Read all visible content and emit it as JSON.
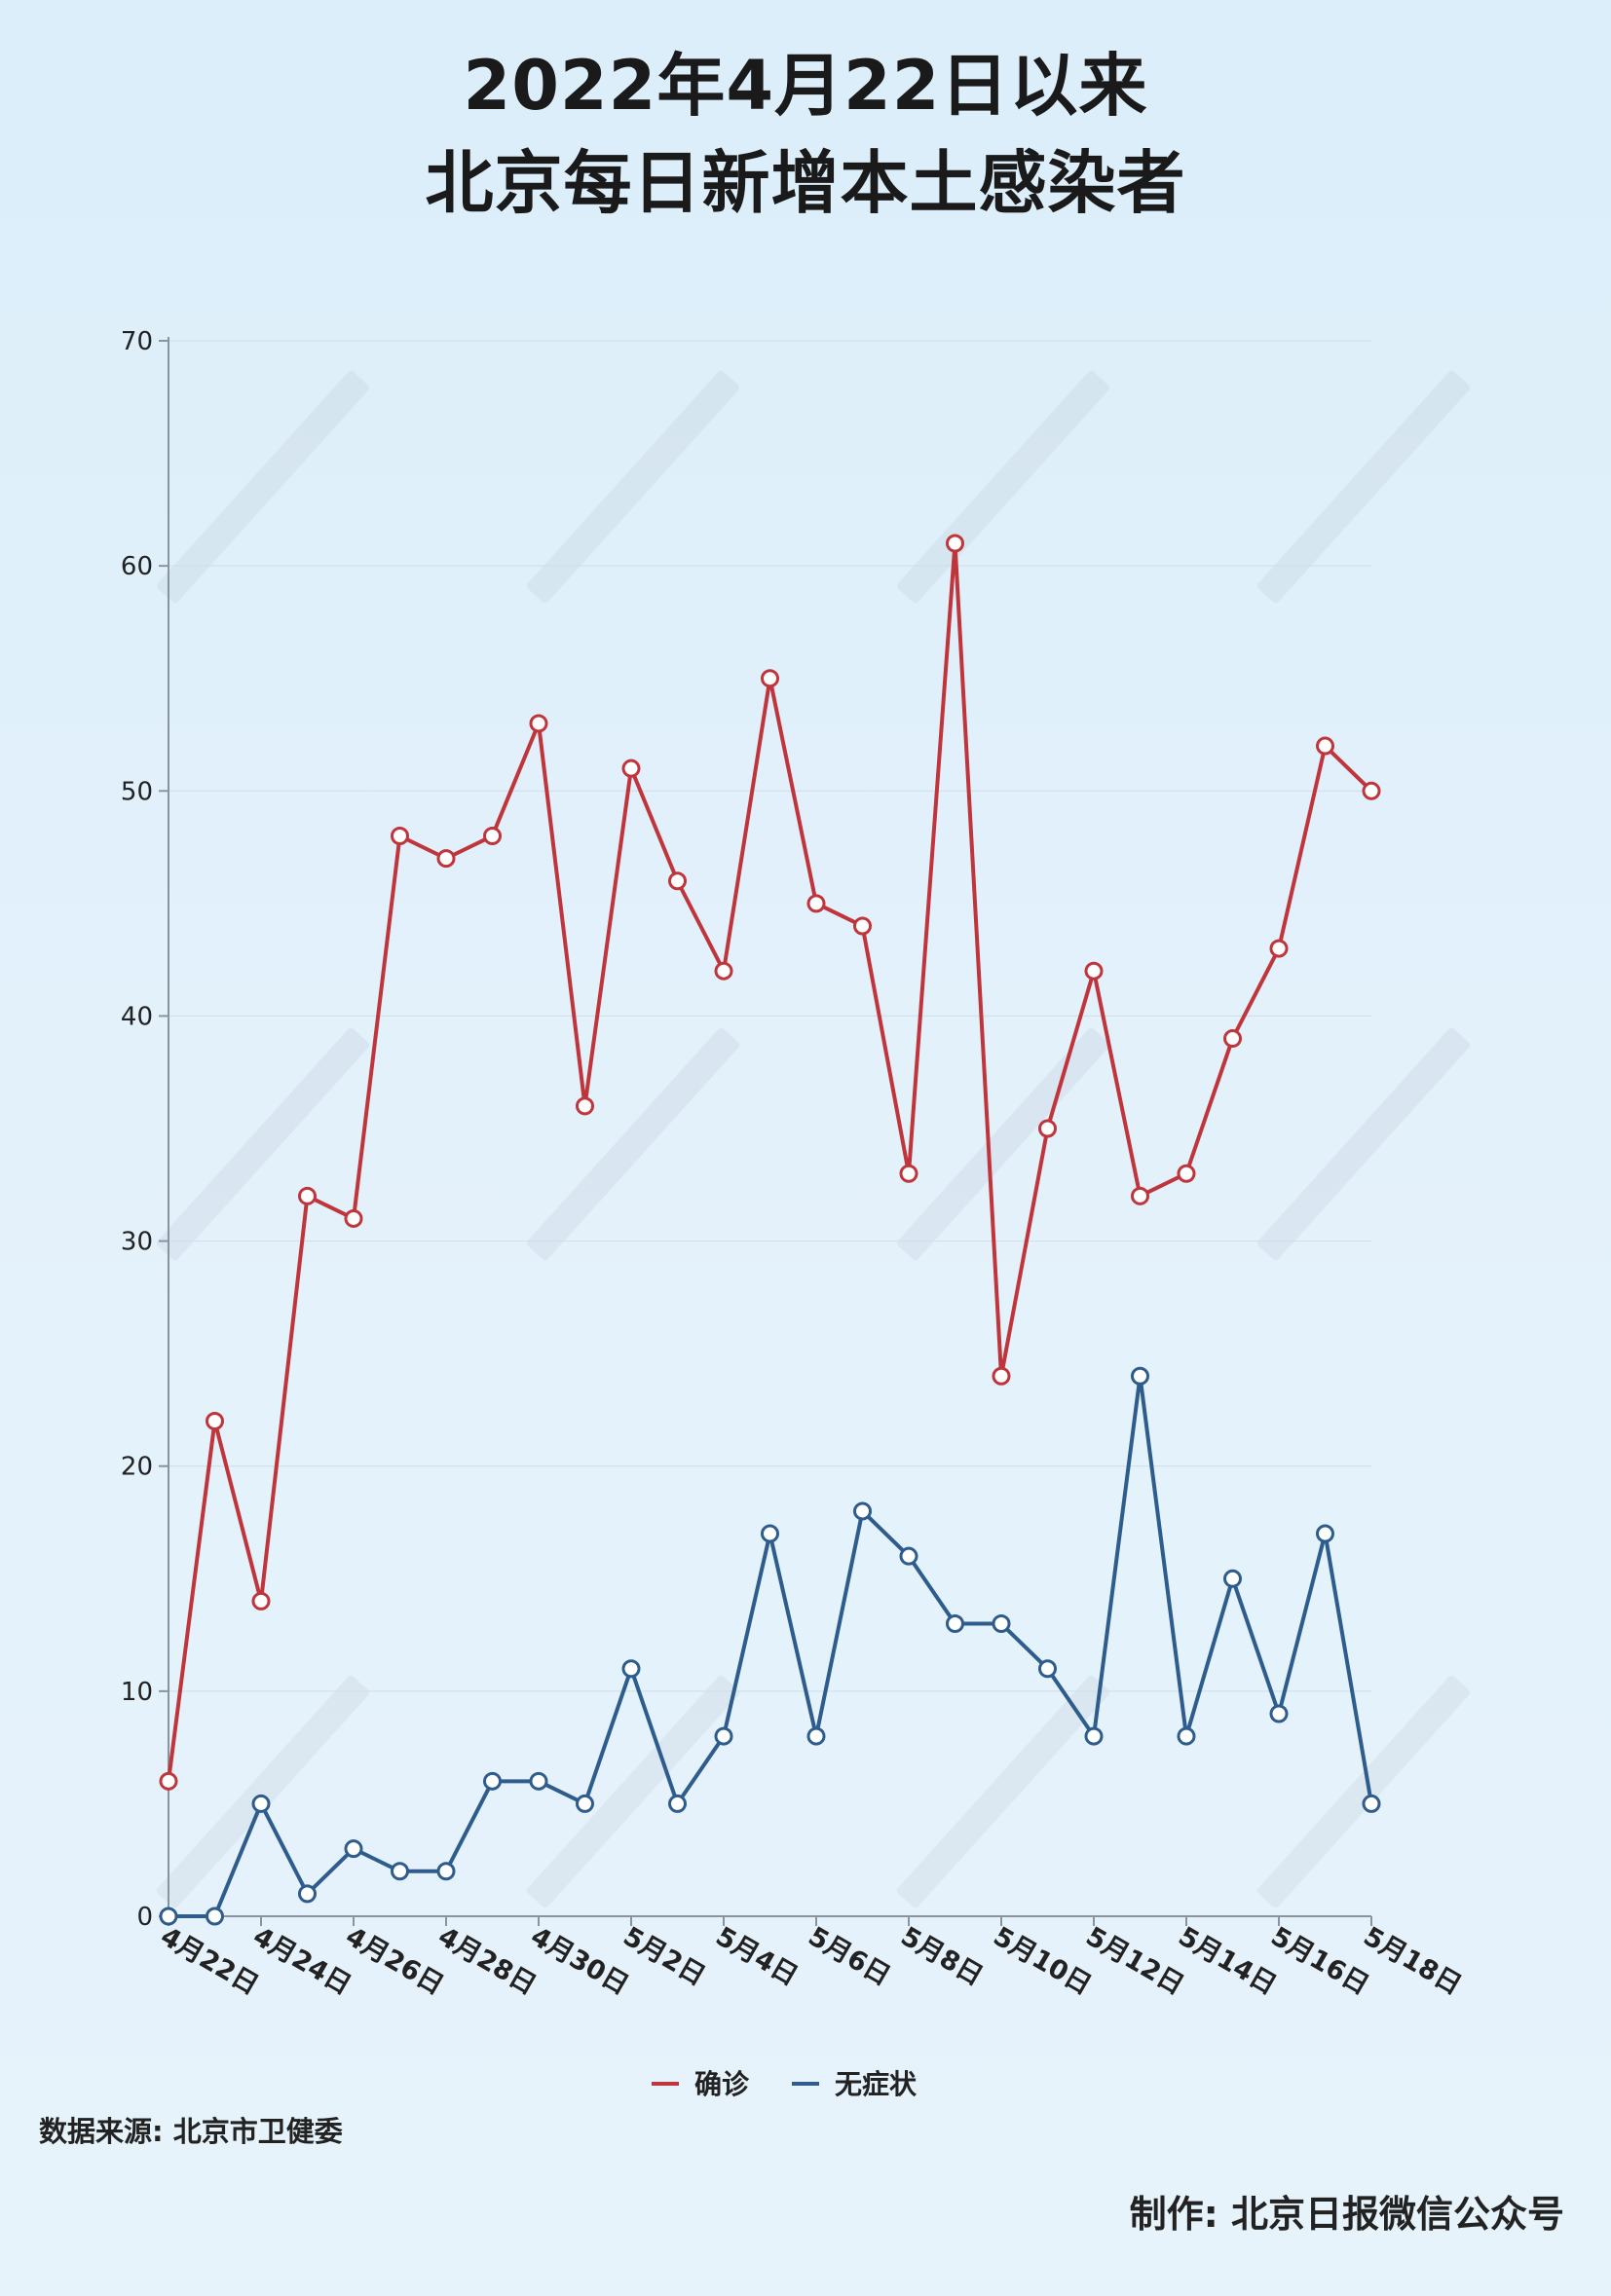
{
  "title": {
    "line1": "2022年4月22日以来",
    "line2": "北京每日新增本土感染者"
  },
  "source": "数据来源: 北京市卫健委",
  "credit": "制作: 北京日报微信公众号",
  "colors": {
    "confirmed": "#c0353c",
    "asymptomatic": "#2e5c8c",
    "axis": "#8a94a0",
    "background": "#e3f1fb"
  },
  "chart_data": {
    "type": "line",
    "title": "2022年4月22日以来 北京每日新增本土感染者",
    "xlabel": "",
    "ylabel": "",
    "ylim": [
      0,
      70
    ],
    "yticks": [
      0,
      10,
      20,
      30,
      40,
      50,
      60,
      70
    ],
    "grid": false,
    "legend_position": "bottom",
    "x": [
      "4月22日",
      "4月23日",
      "4月24日",
      "4月25日",
      "4月26日",
      "4月27日",
      "4月28日",
      "4月29日",
      "4月30日",
      "5月1日",
      "5月2日",
      "5月3日",
      "5月4日",
      "5月5日",
      "5月6日",
      "5月7日",
      "5月8日",
      "5月9日",
      "5月10日",
      "5月11日",
      "5月12日",
      "5月13日",
      "5月14日",
      "5月15日",
      "5月16日",
      "5月17日",
      "5月18日"
    ],
    "xtick_labels": [
      "4月22日",
      "4月24日",
      "4月26日",
      "4月28日",
      "4月30日",
      "5月2日",
      "5月4日",
      "5月6日",
      "5月8日",
      "5月10日",
      "5月12日",
      "5月14日",
      "5月16日",
      "5月18日"
    ],
    "series": [
      {
        "name": "确诊",
        "color": "#c0353c",
        "values": [
          6,
          22,
          14,
          32,
          31,
          48,
          47,
          48,
          53,
          36,
          51,
          46,
          42,
          55,
          45,
          44,
          33,
          61,
          24,
          35,
          42,
          32,
          33,
          39,
          43,
          52,
          50
        ]
      },
      {
        "name": "无症状",
        "color": "#2e5c8c",
        "values": [
          0,
          0,
          5,
          1,
          3,
          2,
          2,
          6,
          6,
          5,
          11,
          5,
          8,
          17,
          8,
          18,
          16,
          13,
          13,
          11,
          8,
          24,
          8,
          15,
          9,
          17,
          5
        ]
      }
    ]
  }
}
